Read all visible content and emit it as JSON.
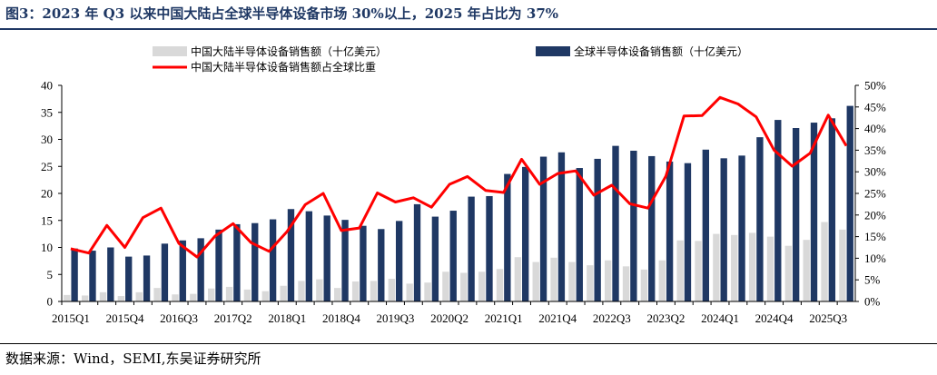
{
  "title": "图3：2023 年 Q3 以来中国大陆占全球半导体设备市场 30%以上，2025 年占比为 37%",
  "source": "数据来源：Wind，SEMI,东吴证券研究所",
  "chart_data": {
    "type": "bar",
    "x": [
      "2015Q1",
      "2015Q2",
      "2015Q3",
      "2015Q4",
      "2016Q1",
      "2016Q2",
      "2016Q3",
      "2016Q4",
      "2017Q1",
      "2017Q2",
      "2017Q3",
      "2017Q4",
      "2018Q1",
      "2018Q2",
      "2018Q3",
      "2018Q4",
      "2019Q1",
      "2019Q2",
      "2019Q3",
      "2019Q4",
      "2020Q1",
      "2020Q2",
      "2020Q3",
      "2020Q4",
      "2021Q1",
      "2021Q2",
      "2021Q3",
      "2021Q4",
      "2022Q1",
      "2022Q2",
      "2022Q3",
      "2022Q4",
      "2023Q1",
      "2023Q2",
      "2023Q3",
      "2023Q4",
      "2024Q1",
      "2024Q2",
      "2024Q3",
      "2024Q4",
      "2025Q1",
      "2025Q2",
      "2025Q3",
      "2025Q4"
    ],
    "tick_labels": [
      "2015Q1",
      "2015Q4",
      "2016Q3",
      "2017Q2",
      "2018Q1",
      "2018Q4",
      "2019Q3",
      "2020Q2",
      "2021Q1",
      "2021Q4",
      "2022Q3",
      "2023Q2",
      "2024Q1",
      "2024Q4",
      "2025Q3"
    ],
    "series": [
      {
        "name": "中国大陆半导体设备销售额（十亿美元）",
        "type": "bar",
        "axis": "left",
        "color": "#d9d9d9",
        "values": [
          1.2,
          1.1,
          1.7,
          1.0,
          1.7,
          2.5,
          1.3,
          1.4,
          2.4,
          2.7,
          2.2,
          1.9,
          2.9,
          3.8,
          4.1,
          2.5,
          3.7,
          3.8,
          4.2,
          3.3,
          3.5,
          5.5,
          5.3,
          5.5,
          6.0,
          8.2,
          7.3,
          8.1,
          7.3,
          6.7,
          7.6,
          6.5,
          5.9,
          7.6,
          11.3,
          11.2,
          12.5,
          12.3,
          12.7,
          12.0,
          10.3,
          11.4,
          14.7,
          13.3
        ]
      },
      {
        "name": "全球半导体设备销售额（十亿美元）",
        "type": "bar",
        "axis": "left",
        "color": "#1f3864",
        "values": [
          9.8,
          9.4,
          10.0,
          8.3,
          8.5,
          10.7,
          11.3,
          11.7,
          13.3,
          14.3,
          14.5,
          15.2,
          17.1,
          16.7,
          15.9,
          15.1,
          14.0,
          13.4,
          14.9,
          18.0,
          15.7,
          16.8,
          19.4,
          19.5,
          23.6,
          24.9,
          26.8,
          27.6,
          24.7,
          26.4,
          28.8,
          27.9,
          26.9,
          25.9,
          25.6,
          28.1,
          26.5,
          27.0,
          30.4,
          33.6,
          32.1,
          33.1,
          33.9,
          36.2
        ]
      },
      {
        "name": "中国大陆半导体设备销售额占全球比重",
        "type": "line",
        "axis": "right",
        "color": "#ff0000",
        "values": [
          12.2,
          11.2,
          17.6,
          12.5,
          19.4,
          21.6,
          13.4,
          10.3,
          15.1,
          18.0,
          13.6,
          11.6,
          16.2,
          22.4,
          25.0,
          16.4,
          17.0,
          25.1,
          23.0,
          24.0,
          21.8,
          27.1,
          28.9,
          25.7,
          25.2,
          32.9,
          27.1,
          29.6,
          30.2,
          24.6,
          26.9,
          22.6,
          21.6,
          29.0,
          42.9,
          43.0,
          47.2,
          45.7,
          42.7,
          35.0,
          31.3,
          34.3,
          43.1,
          36.0
        ]
      }
    ],
    "y_left": {
      "min": 0,
      "max": 40,
      "ticks": [
        0,
        5,
        10,
        15,
        20,
        25,
        30,
        35,
        40
      ]
    },
    "y_right": {
      "min": 0,
      "max": 50,
      "ticks": [
        "0%",
        "5%",
        "10%",
        "15%",
        "20%",
        "25%",
        "30%",
        "35%",
        "40%",
        "45%",
        "50%"
      ]
    },
    "legend_position": "top",
    "grid": false
  }
}
